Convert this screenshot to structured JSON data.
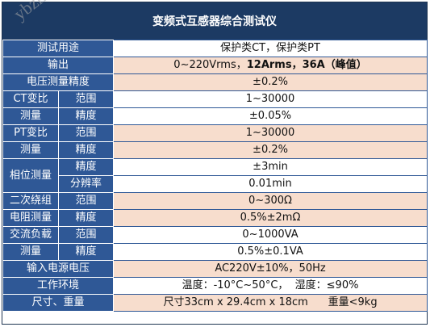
{
  "title": "变频式互感器综合测试仪",
  "watermark": "ybzhan.cn",
  "rows": {
    "use": {
      "label": "测试用途",
      "value": "保护类CT，保护类PT"
    },
    "output": {
      "label": "输出",
      "value_prefix": "0~220Vrms，",
      "value_bold": "12Arms，36A（峰值）"
    },
    "voltage": {
      "label": "电压测量精度",
      "value": "±0.2%"
    },
    "ct_range": {
      "label": "CT变比",
      "sub": "范围",
      "value": "1~30000"
    },
    "ct_acc": {
      "label": "测量",
      "sub": "精度",
      "value": "±0.05%"
    },
    "pt_range": {
      "label": "PT变比",
      "sub": "范围",
      "value": "1~30000"
    },
    "pt_acc": {
      "label": "测量",
      "sub": "精度",
      "value": "±0.2%"
    },
    "phase": {
      "label": "相位测量",
      "sub1": "精度",
      "value1": "±3min",
      "sub2": "分辨率",
      "value2": "0.01min"
    },
    "winding_range": {
      "label": "二次绕组",
      "sub": "范围",
      "value": "0~300Ω"
    },
    "winding_acc": {
      "label": "电阻测量",
      "sub": "精度",
      "value": "0.5%±2mΩ"
    },
    "load_range": {
      "label": "交流负载",
      "sub": "范围",
      "value": "0~1000VA"
    },
    "load_acc": {
      "label": "测量",
      "sub": "精度",
      "value": "0.5%±0.1VA"
    },
    "power": {
      "label": "输入电源电压",
      "value": "AC220V±10%，50Hz"
    },
    "env": {
      "label": "工作环境",
      "value": "温度：-10°C~50°C，  湿度：≤90%"
    },
    "size": {
      "label": "尺寸、重量",
      "value": "尺寸33cm x 29.4cm x 18cm      重量<9kg"
    }
  }
}
